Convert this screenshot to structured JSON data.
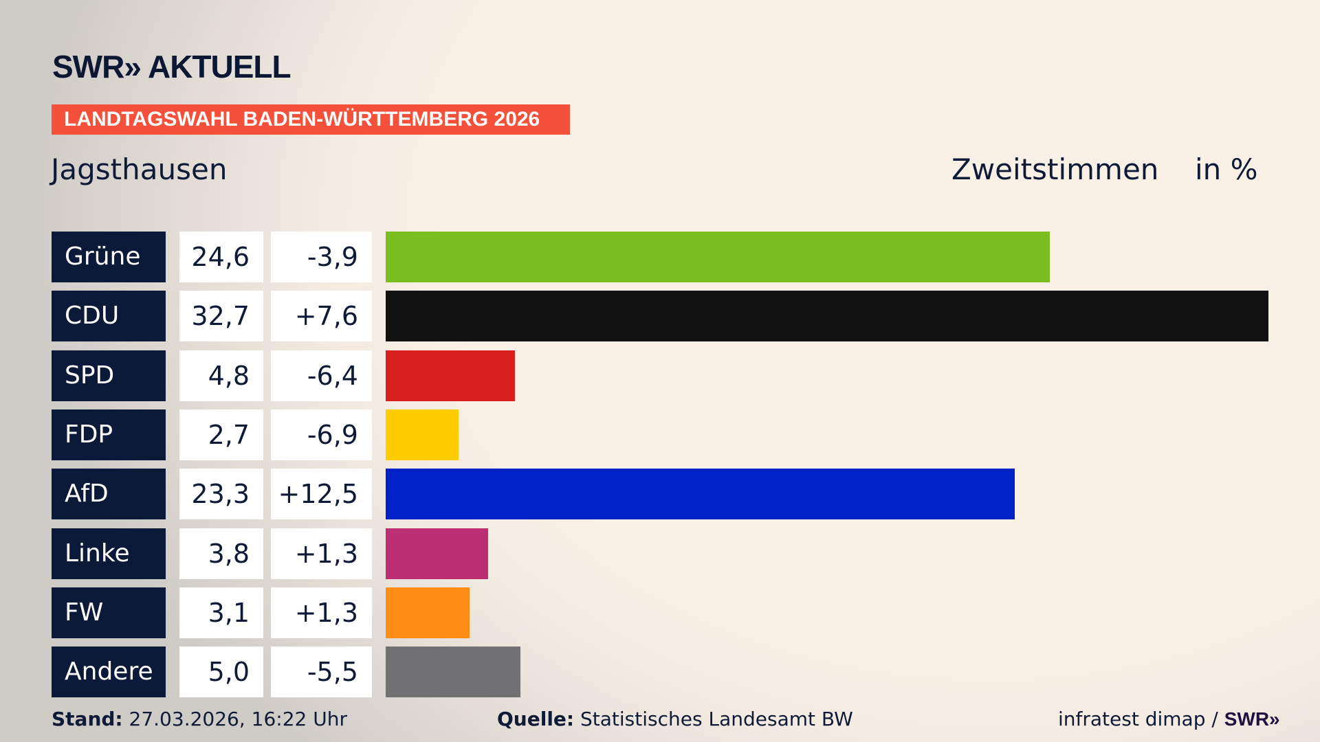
{
  "header": {
    "logo": "SWR» AKTUELL",
    "banner": "LANDTAGSWAHL BADEN-WÜRTTEMBERG 2026",
    "place": "Jagsthausen",
    "metric": "Zweitstimmen",
    "unit": "in %"
  },
  "chart_data": {
    "type": "bar",
    "orientation": "horizontal",
    "categories": [
      "Grüne",
      "CDU",
      "SPD",
      "FDP",
      "AfD",
      "Linke",
      "FW",
      "Andere"
    ],
    "values": [
      24.6,
      32.7,
      4.8,
      2.7,
      23.3,
      3.8,
      3.1,
      5.0
    ],
    "value_labels": [
      "24,6",
      "32,7",
      "4,8",
      "2,7",
      "23,3",
      "3,8",
      "3,1",
      "5,0"
    ],
    "diff_labels": [
      "-3,9",
      "+7,6",
      "-6,4",
      "-6,9",
      "+12,5",
      "+1,3",
      "+1,3",
      "-5,5"
    ],
    "colors": [
      "#7bbe1f",
      "#111111",
      "#d8201e",
      "#ffcc00",
      "#0021c8",
      "#bd2f74",
      "#ff8c17",
      "#717174"
    ]
  },
  "footer": {
    "stand_label": "Stand:",
    "stand_value": "27.03.2026, 16:22 Uhr",
    "source_label": "Quelle:",
    "source_value": "Statistisches Landesamt BW",
    "credit": "infratest dimap / ",
    "credit_logo": "SWR»"
  }
}
